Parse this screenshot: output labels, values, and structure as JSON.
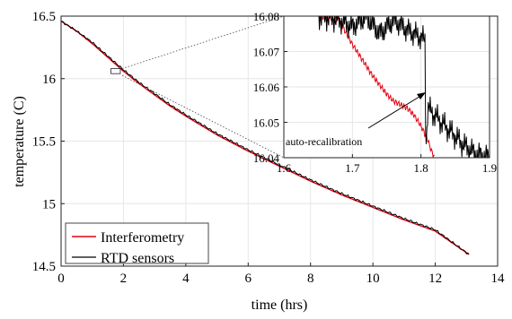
{
  "chart_data": {
    "type": "line",
    "xlabel": "time (hrs)",
    "ylabel": "temperature (C)",
    "xlim": [
      0,
      14
    ],
    "ylim": [
      14.5,
      16.5
    ],
    "xticks": [
      "0",
      "2",
      "4",
      "6",
      "8",
      "10",
      "12",
      "14"
    ],
    "yticks": [
      "14.5",
      "15",
      "15.5",
      "16",
      "16.5"
    ],
    "grid": true,
    "legend_position": "bottom-left",
    "series": [
      {
        "name": "Interferometry",
        "color": "#e3000f",
        "x": [
          0,
          0.5,
          1,
          1.5,
          2,
          2.5,
          3,
          3.5,
          4,
          5,
          6,
          7,
          8,
          9,
          10,
          11,
          12,
          13.1
        ],
        "y": [
          16.46,
          16.38,
          16.28,
          16.17,
          16.06,
          15.96,
          15.87,
          15.78,
          15.7,
          15.55,
          15.42,
          15.3,
          15.18,
          15.07,
          14.97,
          14.87,
          14.78,
          14.59
        ]
      },
      {
        "name": "RTD sensors",
        "color": "#000000",
        "x": [
          0,
          0.5,
          1,
          1.5,
          2,
          2.5,
          3,
          3.5,
          4,
          5,
          6,
          7,
          8,
          9,
          10,
          11,
          12,
          13.1
        ],
        "y": [
          16.46,
          16.38,
          16.29,
          16.18,
          16.07,
          15.97,
          15.88,
          15.79,
          15.71,
          15.56,
          15.43,
          15.31,
          15.19,
          15.08,
          14.98,
          14.88,
          14.79,
          14.59
        ]
      }
    ],
    "inset": {
      "xlim": [
        1.6,
        1.9
      ],
      "ylim": [
        16.04,
        16.08
      ],
      "xticks": [
        "1.6",
        "1.7",
        "1.8",
        "1.9"
      ],
      "yticks": [
        "16.04",
        "16.05",
        "16.06",
        "16.07",
        "16.08"
      ],
      "grid": true,
      "annotation": "auto-recalibration",
      "series": [
        {
          "name": "Interferometry",
          "color": "#e3000f",
          "x": [
            1.65,
            1.68,
            1.7,
            1.72,
            1.73,
            1.75,
            1.76,
            1.77,
            1.78,
            1.79,
            1.8,
            1.805,
            1.81,
            1.815,
            1.82
          ],
          "y": [
            16.08,
            16.079,
            16.072,
            16.066,
            16.063,
            16.058,
            16.056,
            16.055,
            16.054,
            16.052,
            16.049,
            16.047,
            16.045,
            16.042,
            16.04
          ]
        },
        {
          "name": "RTD sensors",
          "color": "#000000",
          "x": [
            1.65,
            1.68,
            1.7,
            1.72,
            1.74,
            1.76,
            1.78,
            1.8,
            1.806,
            1.807,
            1.81,
            1.82,
            1.84,
            1.86,
            1.88,
            1.9
          ],
          "y": [
            16.08,
            16.079,
            16.077,
            16.08,
            16.075,
            16.079,
            16.076,
            16.074,
            16.073,
            16.042,
            16.054,
            16.052,
            16.048,
            16.044,
            16.041,
            16.04
          ]
        }
      ]
    }
  }
}
